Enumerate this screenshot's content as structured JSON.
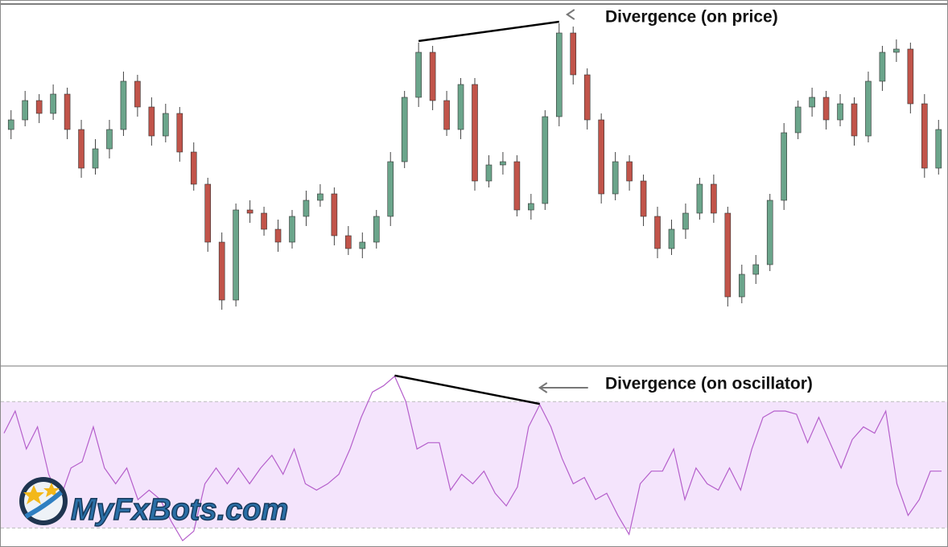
{
  "chart_data": [
    {
      "type": "candlestick",
      "annotation": "Divergence (on price)",
      "open": [
        73,
        76,
        82,
        78,
        84,
        73,
        61,
        67,
        73,
        88,
        80,
        71,
        78,
        66,
        56,
        38,
        20,
        48,
        47,
        42,
        38,
        46,
        51,
        53,
        40,
        36,
        38,
        46,
        63,
        83,
        97,
        82,
        73,
        87,
        57,
        62,
        63,
        48,
        50,
        77,
        103,
        90,
        76,
        53,
        63,
        57,
        46,
        36,
        42,
        47,
        56,
        47,
        21,
        28,
        31,
        51,
        72,
        80,
        83,
        76,
        81,
        71,
        88,
        97,
        98,
        81,
        61
      ],
      "high": [
        79,
        85,
        84,
        87,
        86,
        76,
        70,
        76,
        91,
        90,
        83,
        81,
        80,
        69,
        58,
        41,
        50,
        51,
        49,
        45,
        48,
        54,
        56,
        55,
        43,
        41,
        48,
        66,
        85,
        100,
        99,
        85,
        89,
        89,
        65,
        66,
        65,
        53,
        79,
        106,
        105,
        92,
        78,
        66,
        65,
        59,
        49,
        45,
        50,
        58,
        59,
        49,
        31,
        34,
        53,
        75,
        82,
        86,
        85,
        84,
        83,
        91,
        99,
        101,
        100,
        84,
        76
      ],
      "low": [
        70,
        74,
        75,
        76,
        70,
        58,
        59,
        64,
        71,
        77,
        68,
        69,
        63,
        54,
        35,
        17,
        18,
        44,
        40,
        35,
        36,
        43,
        49,
        37,
        34,
        33,
        36,
        43,
        61,
        80,
        79,
        71,
        70,
        54,
        55,
        59,
        46,
        45,
        48,
        74,
        87,
        73,
        50,
        51,
        54,
        43,
        33,
        34,
        39,
        45,
        44,
        18,
        19,
        25,
        29,
        48,
        70,
        77,
        73,
        74,
        68,
        69,
        85,
        94,
        78,
        58,
        59
      ],
      "close": [
        76,
        82,
        78,
        84,
        73,
        61,
        67,
        73,
        88,
        80,
        71,
        78,
        66,
        56,
        38,
        20,
        48,
        47,
        42,
        38,
        46,
        51,
        53,
        40,
        36,
        38,
        46,
        63,
        83,
        97,
        82,
        73,
        87,
        57,
        62,
        63,
        48,
        50,
        77,
        103,
        90,
        76,
        53,
        63,
        57,
        46,
        36,
        42,
        47,
        56,
        47,
        21,
        28,
        31,
        51,
        72,
        80,
        83,
        76,
        81,
        71,
        88,
        97,
        98,
        81,
        61,
        73
      ],
      "up_color": "#6ba58b",
      "down_color": "#c1544a",
      "ylim": [
        0,
        112
      ]
    },
    {
      "type": "line",
      "annotation": "Divergence (on oscillator)",
      "values": [
        60,
        67,
        55,
        62,
        47,
        39,
        49,
        51,
        62,
        49,
        44,
        49,
        39,
        42,
        39,
        32,
        26,
        29,
        44,
        49,
        44,
        49,
        44,
        49,
        53,
        47,
        55,
        44,
        42,
        44,
        47,
        55,
        65,
        73,
        75,
        78,
        70,
        55,
        57,
        57,
        42,
        47,
        44,
        48,
        41,
        37,
        43,
        62,
        69,
        62,
        52,
        44,
        46,
        39,
        41,
        34,
        28,
        44,
        48,
        48,
        55,
        39,
        49,
        44,
        42,
        49,
        42,
        55,
        65,
        67,
        67,
        66,
        57,
        65,
        57,
        49,
        58,
        62,
        60,
        67,
        44,
        34,
        39,
        48,
        48
      ],
      "color": "#b55fcb",
      "band_color": "#f4e4fc",
      "levels": [
        30,
        70
      ],
      "ylim": [
        24,
        81
      ]
    }
  ],
  "logo": "MyFxBots.com"
}
